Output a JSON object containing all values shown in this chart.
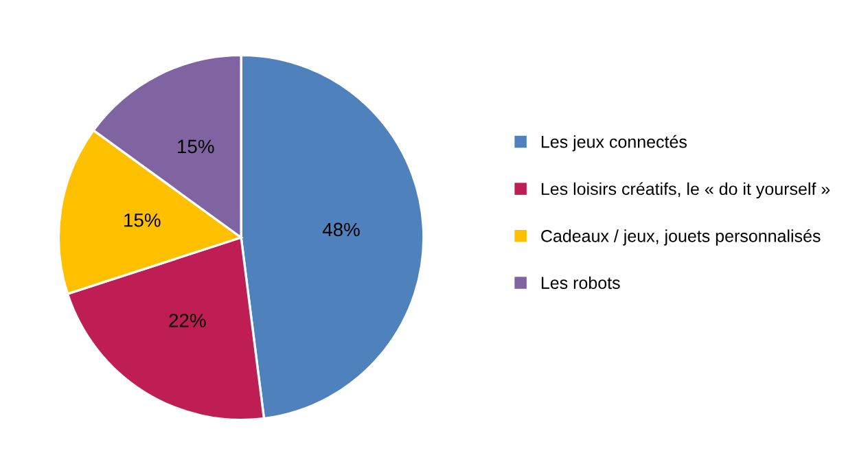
{
  "chart_data": {
    "type": "pie",
    "categories": [
      "Les jeux connectés",
      "Les loisirs créatifs, le « do it yourself »",
      "Cadeaux / jeux, jouets personnalisés",
      "Les robots"
    ],
    "values": [
      48,
      22,
      15,
      15
    ],
    "colors": [
      "#4f81bd",
      "#be1e54",
      "#ffc000",
      "#8064a2"
    ],
    "value_labels": [
      "48%",
      "22%",
      "15%",
      "15%"
    ],
    "legend": "right"
  }
}
